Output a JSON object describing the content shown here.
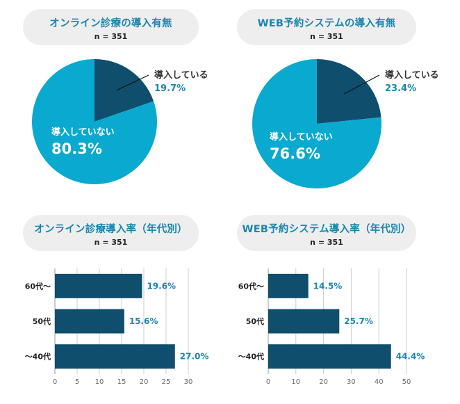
{
  "colors": {
    "dark": "#0f4f6d",
    "light": "#0aa9cf",
    "label_dark": "#333333",
    "accent_text": "#1a86ad",
    "grid": "#cccccc"
  },
  "panels": [
    {
      "title": "オンライン診療の導入有無",
      "n": "n = 351",
      "chart_label_yes": "導入している",
      "chart_label_no": "導入していない"
    },
    {
      "title": "WEB予約システムの導入有無",
      "n": "n = 351",
      "chart_label_yes": "導入している",
      "chart_label_no": "導入していない"
    },
    {
      "title": "オンライン診療導入率（年代別）",
      "n": "n = 351"
    },
    {
      "title": "WEB予約システム導入率（年代別）",
      "n": "n = 351"
    }
  ],
  "chart_data": [
    {
      "type": "pie",
      "title": "オンライン診療の導入有無",
      "subtitle": "n = 351",
      "slices": [
        {
          "label": "導入している",
          "value": 19.7,
          "value_label": "19.7%",
          "color": "#0f4f6d"
        },
        {
          "label": "導入していない",
          "value": 80.3,
          "value_label": "80.3%",
          "color": "#0aa9cf"
        }
      ]
    },
    {
      "type": "pie",
      "title": "WEB予約システムの導入有無",
      "subtitle": "n = 351",
      "slices": [
        {
          "label": "導入している",
          "value": 23.4,
          "value_label": "23.4%",
          "color": "#0f4f6d"
        },
        {
          "label": "導入していない",
          "value": 76.6,
          "value_label": "76.6%",
          "color": "#0aa9cf"
        }
      ]
    },
    {
      "type": "bar",
      "orientation": "horizontal",
      "title": "オンライン診療導入率（年代別）",
      "subtitle": "n = 351",
      "categories": [
        "60代～",
        "50代",
        "～40代"
      ],
      "values": [
        19.6,
        15.6,
        27.0
      ],
      "value_labels": [
        "19.6%",
        "15.6%",
        "27.0%"
      ],
      "xlim": [
        0,
        30
      ],
      "xticks": [
        "0",
        "5",
        "10",
        "15",
        "20",
        "25",
        "30"
      ],
      "grid": true
    },
    {
      "type": "bar",
      "orientation": "horizontal",
      "title": "WEB予約システム導入率（年代別）",
      "subtitle": "n = 351",
      "categories": [
        "60代～",
        "50代",
        "～40代"
      ],
      "values": [
        14.5,
        25.7,
        44.4
      ],
      "value_labels": [
        "14.5%",
        "25.7%",
        "44.4%"
      ],
      "xlim": [
        0,
        50
      ],
      "xticks": [
        "0",
        "10",
        "20",
        "30",
        "40",
        "50"
      ],
      "grid": true
    }
  ]
}
